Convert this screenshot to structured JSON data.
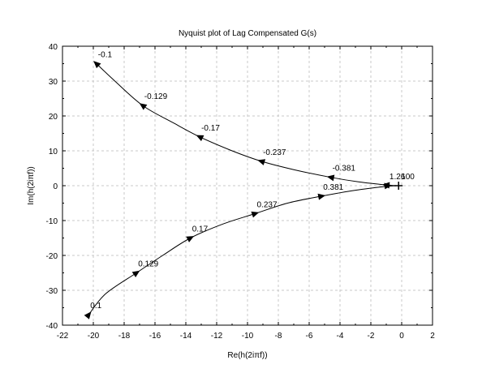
{
  "chart_data": {
    "type": "line",
    "title": "Nyquist plot of Lag Compensated G(s)",
    "xlabel": "Re(h(2iπf))",
    "ylabel": "Im(h(2iπf))",
    "xlim": [
      -22,
      2
    ],
    "ylim": [
      -40,
      40
    ],
    "xticks": [
      "-22",
      "-20",
      "-18",
      "-16",
      "-14",
      "-12",
      "-10",
      "-8",
      "-6",
      "-4",
      "-2",
      "0",
      "2"
    ],
    "yticks": [
      "40",
      "30",
      "20",
      "10",
      "0",
      "-10",
      "-20",
      "-30",
      "-40"
    ],
    "grid": true,
    "series": [
      {
        "curve": [
          [
            -19.8,
            35
          ],
          [
            -18.6,
            30
          ],
          [
            -16.8,
            23
          ],
          [
            -14.8,
            18
          ],
          [
            -13.1,
            14
          ],
          [
            -11.0,
            10
          ],
          [
            -9.1,
            7
          ],
          [
            -7.0,
            4.6
          ],
          [
            -4.6,
            2.4
          ],
          [
            -2.8,
            1.1
          ],
          [
            -1.0,
            0.2
          ],
          [
            -0.3,
            0
          ]
        ],
        "markers": [
          {
            "x": -19.8,
            "y": 35,
            "label": "-0.1"
          },
          {
            "x": -16.8,
            "y": 23,
            "label": "-0.129"
          },
          {
            "x": -13.1,
            "y": 14,
            "label": "-0.17"
          },
          {
            "x": -9.1,
            "y": 7,
            "label": "-0.237"
          },
          {
            "x": -4.6,
            "y": 2.4,
            "label": "-0.381"
          },
          {
            "x": -1.0,
            "y": 0.2,
            "label": ""
          }
        ]
      },
      {
        "curve": [
          [
            -20.3,
            -37
          ],
          [
            -19.2,
            -31
          ],
          [
            -17.2,
            -25
          ],
          [
            -15.5,
            -20
          ],
          [
            -13.7,
            -15
          ],
          [
            -11.6,
            -11
          ],
          [
            -9.5,
            -8
          ],
          [
            -7.4,
            -5
          ],
          [
            -5.2,
            -3
          ],
          [
            -3.0,
            -1.3
          ],
          [
            -1.0,
            -0.2
          ],
          [
            -0.3,
            0
          ]
        ],
        "markers": [
          {
            "x": -20.3,
            "y": -37,
            "label": "0.1"
          },
          {
            "x": -17.2,
            "y": -25,
            "label": "0.129"
          },
          {
            "x": -13.7,
            "y": -15,
            "label": "0.17"
          },
          {
            "x": -9.5,
            "y": -8,
            "label": "0.237"
          },
          {
            "x": -5.2,
            "y": -3,
            "label": "0.381"
          },
          {
            "x": -0.9,
            "y": 0,
            "label": "1.26"
          }
        ]
      }
    ],
    "annotations": [
      {
        "x": -0.2,
        "y": 0,
        "label": "100"
      }
    ]
  }
}
